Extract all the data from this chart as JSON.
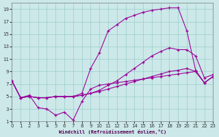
{
  "xlabel": "Windchill (Refroidissement éolien,°C)",
  "background_color": "#cce8e8",
  "grid_color": "#99cccc",
  "line_color": "#990099",
  "xmin": 0,
  "xmax": 23,
  "ymin": 1,
  "ymax": 20,
  "xticks": [
    0,
    1,
    2,
    3,
    4,
    5,
    6,
    7,
    8,
    9,
    10,
    11,
    12,
    13,
    14,
    15,
    16,
    17,
    18,
    19,
    20,
    21,
    22,
    23
  ],
  "yticks": [
    1,
    3,
    5,
    7,
    9,
    11,
    13,
    15,
    17,
    19
  ],
  "line1_x": [
    0,
    1,
    2,
    3,
    4,
    5,
    6,
    7,
    8,
    9,
    10,
    11,
    12,
    13,
    14,
    15,
    16,
    17,
    18,
    19,
    20,
    21,
    22,
    23
  ],
  "line1_y": [
    7.5,
    4.8,
    5.2,
    3.2,
    3.0,
    2.0,
    2.5,
    1.2,
    4.2,
    6.2,
    6.8,
    7.0,
    7.2,
    7.4,
    7.6,
    7.8,
    8.0,
    8.2,
    8.4,
    8.6,
    8.8,
    9.0,
    7.2,
    8.2
  ],
  "line2_x": [
    0,
    1,
    2,
    3,
    4,
    5,
    6,
    7,
    8,
    9,
    10,
    11,
    12,
    13,
    14,
    15,
    16,
    17,
    18,
    19,
    20,
    21,
    22,
    23
  ],
  "line2_y": [
    7.5,
    4.8,
    5.0,
    4.8,
    4.8,
    5.0,
    5.0,
    5.0,
    5.2,
    5.5,
    5.8,
    6.2,
    6.6,
    7.0,
    7.4,
    7.8,
    8.2,
    8.6,
    9.0,
    9.2,
    9.5,
    9.0,
    7.2,
    8.2
  ],
  "line3_x": [
    0,
    1,
    2,
    3,
    4,
    5,
    6,
    7,
    8,
    9,
    10,
    11,
    12,
    13,
    14,
    15,
    16,
    17,
    18,
    19,
    20,
    21,
    22,
    23
  ],
  "line3_y": [
    7.5,
    4.8,
    5.0,
    4.8,
    4.8,
    5.0,
    5.0,
    5.0,
    5.2,
    5.5,
    6.0,
    6.8,
    7.5,
    8.5,
    9.5,
    10.5,
    11.5,
    12.2,
    12.8,
    12.5,
    12.5,
    11.5,
    8.0,
    8.5
  ],
  "line4_x": [
    0,
    1,
    2,
    3,
    4,
    5,
    6,
    7,
    8,
    9,
    10,
    11,
    12,
    13,
    14,
    15,
    16,
    17,
    18,
    19,
    20,
    21,
    22,
    23
  ],
  "line4_y": [
    7.5,
    4.8,
    5.0,
    4.8,
    4.8,
    5.0,
    5.0,
    5.0,
    5.5,
    9.5,
    12.0,
    15.5,
    16.5,
    17.5,
    18.0,
    18.5,
    18.8,
    19.0,
    19.2,
    19.2,
    15.5,
    9.2,
    7.2,
    8.2
  ]
}
